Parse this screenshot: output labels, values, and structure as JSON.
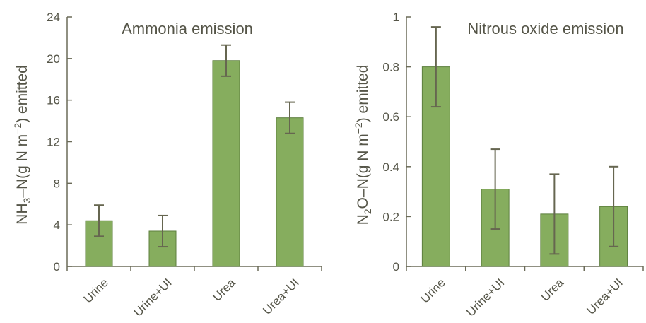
{
  "colors": {
    "bar": "#86ad5e",
    "axis": "#6b6b58",
    "text": "#555548",
    "error_bar": "#666650"
  },
  "chart_data": [
    {
      "type": "bar",
      "title": "Ammonia emission",
      "ylabel": "NH3–N(g N m−2) emitted",
      "ylabel_parts": {
        "a": "NH",
        "sub": "3",
        "b": "–N(g N m",
        "sup": "−2",
        "c": ") emitted"
      },
      "categories": [
        "Urine",
        "Urine+UI",
        "Urea",
        "Urea+UI"
      ],
      "values": [
        4.4,
        3.4,
        19.8,
        14.3
      ],
      "errors": [
        1.5,
        1.5,
        1.5,
        1.5
      ],
      "ylim": [
        0,
        24
      ],
      "yticks": [
        "0",
        "4",
        "8",
        "12",
        "16",
        "20",
        "24"
      ],
      "grid": false
    },
    {
      "type": "bar",
      "title": "Nitrous oxide emission",
      "ylabel": "N2O–N(g N m−2) emitted",
      "ylabel_parts": {
        "a": "N",
        "sub": "2",
        "b": "O–N(g N m",
        "sup": "−2",
        "c": ") emitted"
      },
      "categories": [
        "Urine",
        "Urine+UI",
        "Urea",
        "Urea+UI"
      ],
      "values": [
        0.8,
        0.31,
        0.21,
        0.24
      ],
      "errors": [
        0.16,
        0.16,
        0.16,
        0.16
      ],
      "ylim": [
        0,
        1
      ],
      "yticks": [
        "0",
        "0.2",
        "0.4",
        "0.6",
        "0.8",
        "1"
      ],
      "grid": false
    }
  ]
}
